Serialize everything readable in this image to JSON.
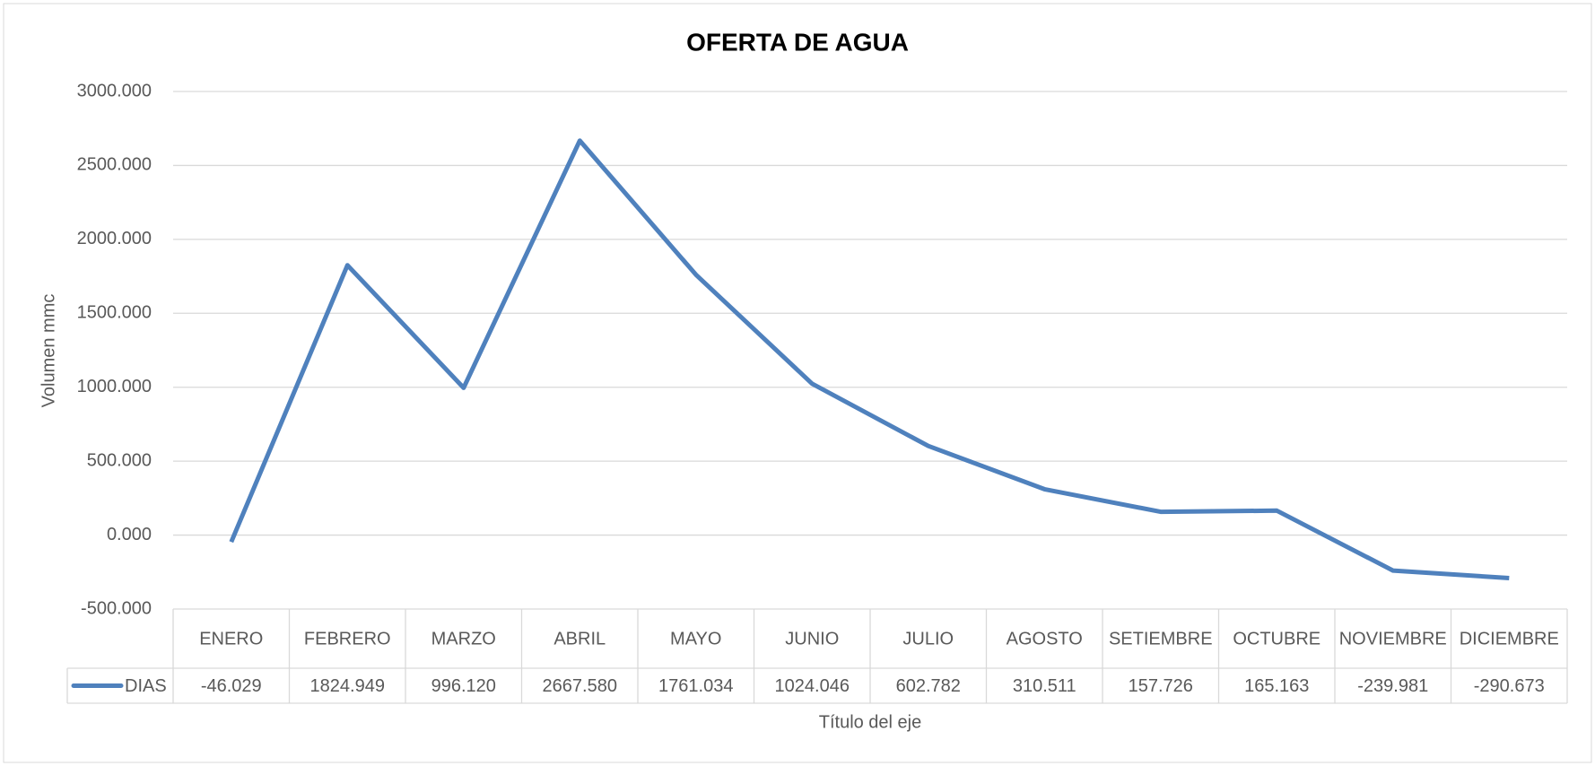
{
  "chart_data": {
    "type": "line",
    "title": "OFERTA DE AGUA",
    "y_label": "Volumen mmc",
    "x_label": "Título del eje",
    "categories": [
      "ENERO",
      "FEBRERO",
      "MARZO",
      "ABRIL",
      "MAYO",
      "JUNIO",
      "JULIO",
      "AGOSTO",
      "SETIEMBRE",
      "OCTUBRE",
      "NOVIEMBRE",
      "DICIEMBRE"
    ],
    "series": [
      {
        "name": "DIAS",
        "color": "#4f81bd",
        "values": [
          -46.029,
          1824.949,
          996.12,
          2667.58,
          1761.034,
          1024.046,
          602.782,
          310.511,
          157.726,
          165.163,
          -239.981,
          -290.673
        ],
        "value_labels": [
          "-46.029",
          "1824.949",
          "996.120",
          "2667.580",
          "1761.034",
          "1024.046",
          "602.782",
          "310.511",
          "157.726",
          "165.163",
          "-239.981",
          "-290.673"
        ]
      }
    ],
    "ylim": [
      -500,
      3000
    ],
    "yticks": [
      {
        "value": -500,
        "label": "-500.000"
      },
      {
        "value": 0,
        "label": "0.000"
      },
      {
        "value": 500,
        "label": "500.000"
      },
      {
        "value": 1000,
        "label": "1000.000"
      },
      {
        "value": 1500,
        "label": "1500.000"
      },
      {
        "value": 2000,
        "label": "2000.000"
      },
      {
        "value": 2500,
        "label": "2500.000"
      },
      {
        "value": 3000,
        "label": "3000.000"
      }
    ],
    "grid": true,
    "data_table": true
  }
}
